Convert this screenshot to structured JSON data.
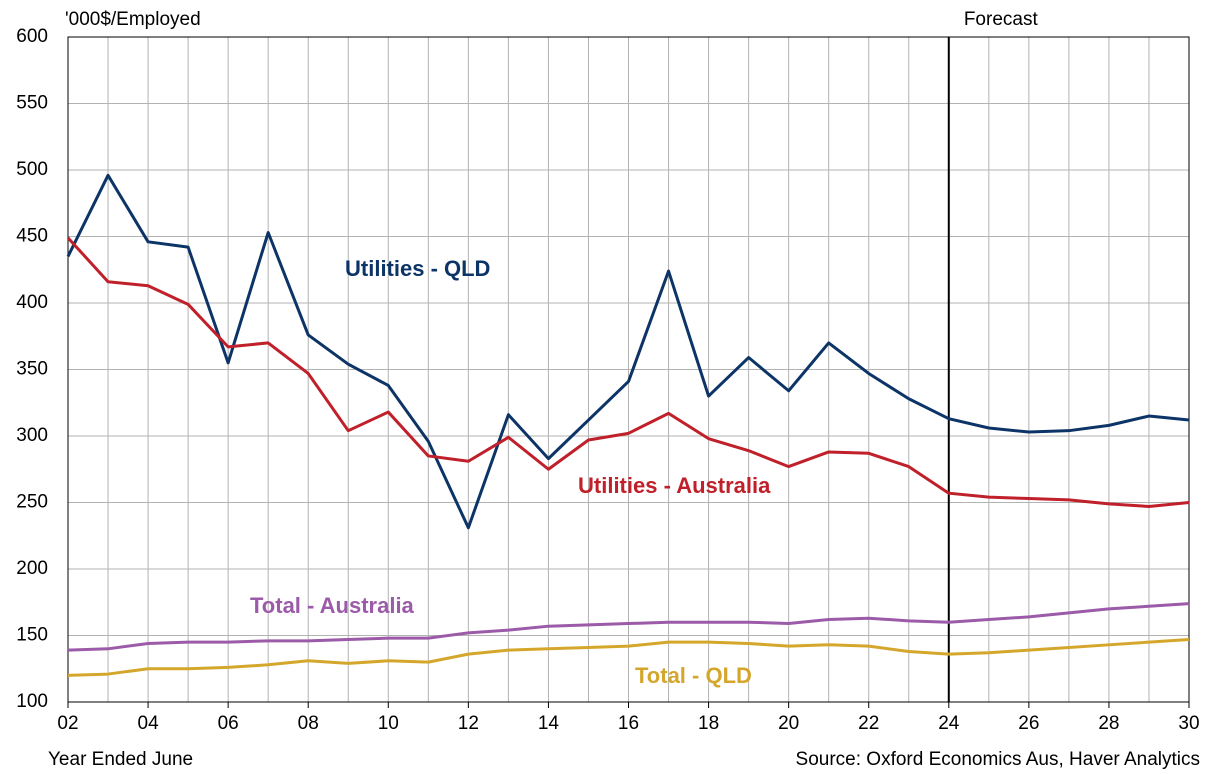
{
  "chart_data": {
    "type": "line",
    "y_label": "'000$/Employed",
    "x_label": "Year Ended June",
    "source": "Source: Oxford Economics Aus, Haver Analytics",
    "forecast": {
      "x": 24,
      "label": "Forecast"
    },
    "x": [
      2,
      3,
      4,
      5,
      6,
      7,
      8,
      9,
      10,
      11,
      12,
      13,
      14,
      15,
      16,
      17,
      18,
      19,
      20,
      21,
      22,
      23,
      24,
      25,
      26,
      27,
      28,
      29,
      30
    ],
    "series": [
      {
        "name": "Utilities - QLD",
        "color": "#0d3466",
        "values": [
          435,
          496,
          446,
          442,
          355,
          453,
          376,
          354,
          338,
          296,
          231,
          316,
          283,
          312,
          341,
          424,
          330,
          359,
          334,
          370,
          347,
          328,
          313,
          306,
          303,
          304,
          308,
          315,
          312
        ]
      },
      {
        "name": "Utilities - Australia",
        "color": "#c0202a",
        "values": [
          449,
          416,
          413,
          399,
          367,
          370,
          347,
          304,
          318,
          285,
          281,
          299,
          275,
          297,
          302,
          317,
          298,
          289,
          277,
          288,
          287,
          277,
          257,
          254,
          253,
          252,
          249,
          247,
          250
        ]
      },
      {
        "name": "Total - Australia",
        "color": "#9c5ba8",
        "values": [
          139,
          140,
          144,
          145,
          145,
          146,
          146,
          147,
          148,
          148,
          152,
          154,
          157,
          158,
          159,
          160,
          160,
          160,
          159,
          162,
          163,
          161,
          160,
          162,
          164,
          167,
          170,
          172,
          174
        ]
      },
      {
        "name": "Total - QLD",
        "color": "#d4a72c",
        "values": [
          120,
          121,
          125,
          125,
          126,
          128,
          131,
          129,
          131,
          130,
          136,
          139,
          140,
          141,
          142,
          145,
          145,
          144,
          142,
          143,
          142,
          138,
          136,
          137,
          139,
          141,
          143,
          145,
          147
        ]
      }
    ],
    "xlim": [
      2,
      30
    ],
    "xticks": [
      {
        "value": 2,
        "label": "02"
      },
      {
        "value": 4,
        "label": "04"
      },
      {
        "value": 6,
        "label": "06"
      },
      {
        "value": 8,
        "label": "08"
      },
      10,
      12,
      14,
      16,
      18,
      20,
      22,
      24,
      26,
      28,
      30
    ],
    "x_minor_ticks": [
      3,
      5,
      7,
      9,
      11,
      13,
      15,
      17,
      19,
      21,
      23,
      25,
      27,
      29
    ],
    "ylim": [
      100,
      600
    ],
    "yticks": [
      100,
      150,
      200,
      250,
      300,
      350,
      400,
      450,
      500,
      550,
      600
    ],
    "grid": true
  }
}
